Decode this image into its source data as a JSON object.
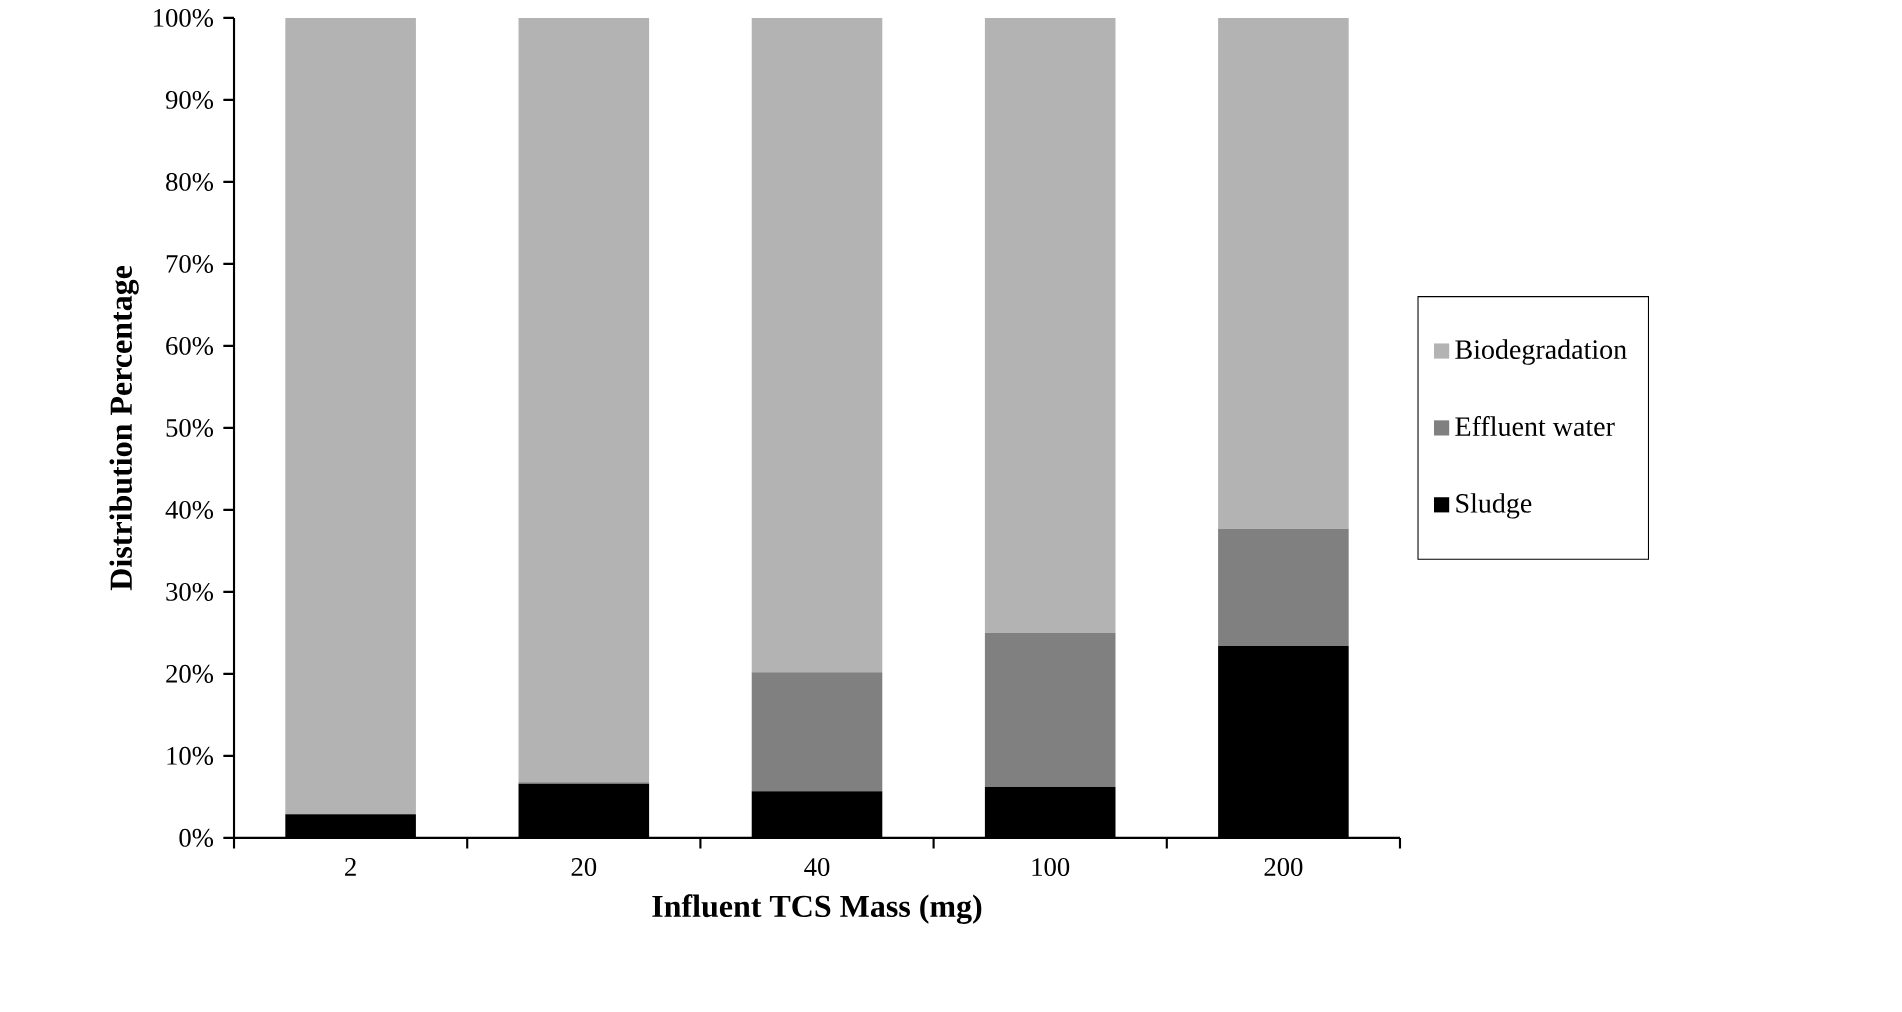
{
  "chart_data": {
    "type": "bar",
    "stacked": true,
    "xlabel": "Influent TCS Mass (mg)",
    "ylabel": "Distribution Percentage",
    "categories": [
      "2",
      "20",
      "40",
      "100",
      "200"
    ],
    "series": [
      {
        "name": "Sludge",
        "color": "#000000",
        "values": [
          2.9,
          6.6,
          5.7,
          6.2,
          23.4
        ]
      },
      {
        "name": "Effluent water",
        "color": "#808080",
        "values": [
          0,
          0.2,
          14.5,
          18.8,
          14.3
        ]
      },
      {
        "name": "Biodegradation",
        "color": "#b3b3b3",
        "values": [
          97.1,
          93.2,
          79.8,
          75.0,
          62.3
        ]
      }
    ],
    "ylim": [
      0,
      100
    ],
    "yticks": [
      {
        "value": 0,
        "label": "0%"
      },
      {
        "value": 10,
        "label": "10%"
      },
      {
        "value": 20,
        "label": "20%"
      },
      {
        "value": 30,
        "label": "30%"
      },
      {
        "value": 40,
        "label": "40%"
      },
      {
        "value": 50,
        "label": "50%"
      },
      {
        "value": 60,
        "label": "60%"
      },
      {
        "value": 70,
        "label": "70%"
      },
      {
        "value": 80,
        "label": "80%"
      },
      {
        "value": 90,
        "label": "90%"
      },
      {
        "value": 100,
        "label": "100%"
      }
    ],
    "legend": "right"
  }
}
